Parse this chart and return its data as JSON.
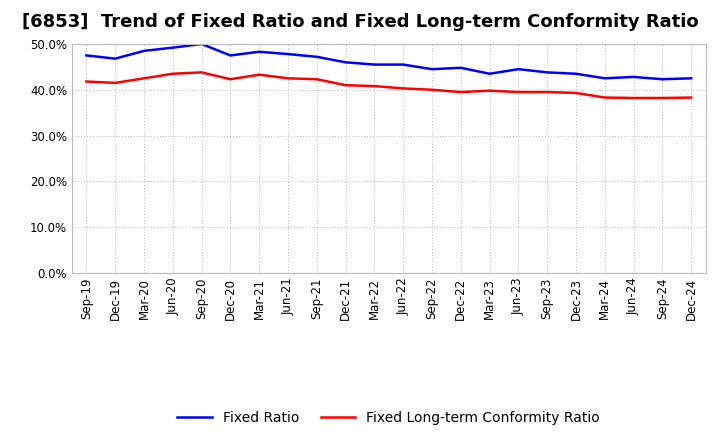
{
  "title": "[6853]  Trend of Fixed Ratio and Fixed Long-term Conformity Ratio",
  "x_labels": [
    "Sep-19",
    "Dec-19",
    "Mar-20",
    "Jun-20",
    "Sep-20",
    "Dec-20",
    "Mar-21",
    "Jun-21",
    "Sep-21",
    "Dec-21",
    "Mar-22",
    "Jun-22",
    "Sep-22",
    "Dec-22",
    "Mar-23",
    "Jun-23",
    "Sep-23",
    "Dec-23",
    "Mar-24",
    "Jun-24",
    "Sep-24",
    "Dec-24"
  ],
  "fixed_ratio": [
    47.5,
    46.8,
    48.5,
    49.2,
    50.0,
    47.5,
    48.3,
    47.8,
    47.2,
    46.0,
    45.5,
    45.5,
    44.5,
    44.8,
    43.5,
    44.5,
    43.8,
    43.5,
    42.5,
    42.8,
    42.3,
    42.5
  ],
  "fixed_lt_ratio": [
    41.8,
    41.5,
    42.5,
    43.5,
    43.8,
    42.3,
    43.3,
    42.5,
    42.3,
    41.0,
    40.8,
    40.3,
    40.0,
    39.5,
    39.8,
    39.5,
    39.5,
    39.3,
    38.3,
    38.2,
    38.2,
    38.3
  ],
  "fixed_ratio_color": "#0000FF",
  "fixed_lt_ratio_color": "#FF0000",
  "ylim": [
    0,
    50
  ],
  "yticks": [
    0,
    10,
    20,
    30,
    40,
    50
  ],
  "legend_fixed_ratio": "Fixed Ratio",
  "legend_fixed_lt_ratio": "Fixed Long-term Conformity Ratio",
  "background_color": "#FFFFFF",
  "plot_bg_color": "#FFFFFF",
  "grid_color": "#BBBBBB",
  "line_width": 1.8,
  "title_fontsize": 13,
  "tick_fontsize": 8.5,
  "legend_fontsize": 10
}
